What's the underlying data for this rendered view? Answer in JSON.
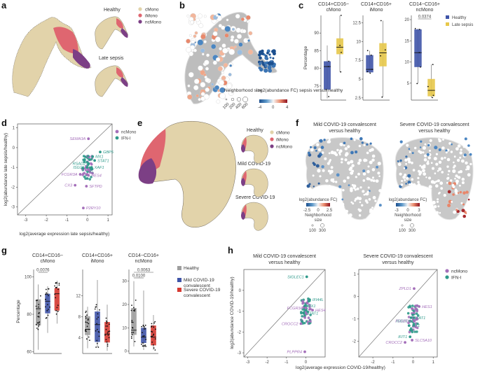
{
  "figure": {
    "panels": {
      "a": {
        "label": "a",
        "subtitles": [
          "Healthy",
          "Late sepsis"
        ],
        "legend": [
          {
            "name": "cMono",
            "color": "#e2d3aa"
          },
          {
            "name": "iMono",
            "color": "#df6670"
          },
          {
            "name": "ncMono",
            "color": "#7c3f85"
          }
        ]
      },
      "b": {
        "label": "b",
        "size_legend_title": "Neighborhood size",
        "size_legend_values": [
          "100",
          "200",
          "400",
          "600"
        ],
        "color_legend_title": "log2(abundance FC) sepsis versus healthy",
        "color_legend_ticks": [
          "-4",
          "0",
          "4"
        ]
      },
      "e": {
        "label": "e",
        "subtitles": [
          "Healthy",
          "Mild COVID-19",
          "Severe COVID-19"
        ],
        "legend": [
          {
            "name": "cMono",
            "color": "#e2d3aa"
          },
          {
            "name": "iMono",
            "color": "#df6670"
          },
          {
            "name": "ncMono",
            "color": "#7c3f85"
          }
        ]
      },
      "f": {
        "label": "f",
        "subplots": [
          {
            "title_l1": "Mild COVID-19 convalescent",
            "title_l2": "versus healthy",
            "fc_title": "log2(abundance FC)",
            "fc_ticks": [
              "-2.5",
              "0",
              "2.5"
            ],
            "size_title_l1": "Neighborhood",
            "size_title_l2": "size",
            "size_values": [
              "100",
              "300"
            ]
          },
          {
            "title_l1": "Severe COVID-19 convalescent",
            "title_l2": "versus healthy",
            "fc_title": "log2(abundance FC)",
            "fc_ticks": [
              "-3",
              "0",
              "3"
            ],
            "size_title_l1": "Neighborhood",
            "size_title_l2": "size",
            "size_values": [
              "100",
              "300"
            ]
          }
        ]
      }
    }
  },
  "chart_data": [
    {
      "panel": "c",
      "type": "box",
      "ylabel": "Percentage",
      "legend": [
        {
          "name": "Healthy",
          "color": "#3f54a8"
        },
        {
          "name": "Late sepsis",
          "color": "#e7c84a"
        }
      ],
      "subplots": [
        {
          "title_l1": "CD14+CD16−",
          "title_l2": "cMono",
          "ylim": [
            71,
            95
          ],
          "yticks": [
            75,
            80,
            85,
            90
          ],
          "boxes": [
            {
              "group": "Healthy",
              "q1": 74,
              "median": 80.5,
              "q3": 82,
              "whisker_low": 71.5,
              "whisker_high": 86.5,
              "points": [
                72,
                74,
                80.5,
                82
              ]
            },
            {
              "group": "Late sepsis",
              "q1": 84,
              "median": 86,
              "q3": 88.5,
              "whisker_low": 79,
              "whisker_high": 95,
              "points": [
                84.5,
                86.5,
                79,
                95
              ]
            }
          ]
        },
        {
          "title_l1": "CD14+CD16+",
          "title_l2": "iMono",
          "ylim": [
            2.2,
            13.5
          ],
          "yticks": [
            2.5,
            5.0,
            7.5,
            10.0,
            12.5
          ],
          "boxes": [
            {
              "group": "Healthy",
              "q1": 5.9,
              "median": 6.3,
              "q3": 8.2,
              "whisker_low": 5.8,
              "whisker_high": 8.8,
              "points": [
                5.8,
                6.0,
                6.3,
                8.2,
                8.8
              ]
            },
            {
              "group": "Late sepsis",
              "q1": 6.7,
              "median": 8.5,
              "q3": 9.8,
              "whisker_low": 2.6,
              "whisker_high": 12.8,
              "points": [
                2.6,
                8.1,
                8.9,
                12.8
              ]
            }
          ]
        },
        {
          "title_l1": "CD14−CD16+",
          "title_l2": "ncMono",
          "ylim": [
            1,
            21
          ],
          "yticks": [
            5,
            10,
            15,
            20
          ],
          "pvalue": "0.0374",
          "boxes": [
            {
              "group": "Healthy",
              "q1": 8.8,
              "median": 12.2,
              "q3": 17.7,
              "whisker_low": 4.9,
              "whisker_high": 17.9,
              "points": [
                4.9,
                8.8,
                12.2,
                17.7,
                18
              ]
            },
            {
              "group": "Late sepsis",
              "q1": 1.9,
              "median": 3.3,
              "q3": 6.0,
              "whisker_low": 1.6,
              "whisker_high": 9.4,
              "points": [
                1.6,
                2.1,
                4.2,
                9.4
              ]
            }
          ]
        }
      ]
    },
    {
      "panel": "d",
      "type": "scatter",
      "xlabel": "log2(average expression late sepsis/healthy)",
      "ylabel": "log2(abundance late sepsis/healthy)",
      "xlim": [
        -3.4,
        1.2
      ],
      "ylim": [
        -3.4,
        1.2
      ],
      "xticks": [
        -3,
        -2,
        -1,
        0,
        1
      ],
      "yticks": [
        -3,
        -2,
        -1,
        0,
        1
      ],
      "legend": [
        {
          "name": "ncMono",
          "color": "#a46fba"
        },
        {
          "name": "IFN-I",
          "color": "#2e998a"
        }
      ],
      "labeled_points": [
        {
          "gene": "SEMA3A",
          "x": 0.05,
          "y": 0.45,
          "group": "ncMono"
        },
        {
          "gene": "GBP5",
          "x": 0.62,
          "y": -0.22,
          "group": "IFN-I"
        },
        {
          "gene": "MX1",
          "x": 0.25,
          "y": -0.45,
          "group": "IFN-I"
        },
        {
          "gene": "STAT1",
          "x": 0.35,
          "y": -0.65,
          "group": "IFN-I"
        },
        {
          "gene": "RSAD2",
          "x": 0.05,
          "y": -0.8,
          "group": "IFN-I"
        },
        {
          "gene": "ISG15",
          "x": -0.02,
          "y": -1.0,
          "group": "IFN-I"
        },
        {
          "gene": "XAF1",
          "x": 0.2,
          "y": -1.0,
          "group": "IFN-I"
        },
        {
          "gene": "FCGR3A",
          "x": -0.35,
          "y": -1.35,
          "group": "ncMono"
        },
        {
          "gene": "HES4",
          "x": 0.05,
          "y": -1.4,
          "group": "ncMono"
        },
        {
          "gene": "CX3",
          "x": -0.6,
          "y": -1.9,
          "group": "ncMono"
        },
        {
          "gene": "SFTPD",
          "x": -0.05,
          "y": -1.95,
          "group": "ncMono"
        },
        {
          "gene": "P2RY10",
          "x": -0.2,
          "y": -3.05,
          "group": "ncMono"
        }
      ]
    },
    {
      "panel": "g",
      "type": "box",
      "ylabel": "Percentage",
      "legend": [
        {
          "name": "Healthy",
          "color": "#9e9e9e"
        },
        {
          "name": "Mild COVID-19 convalescent",
          "color": "#3f54a8"
        },
        {
          "name": "Severe COVID-19 convalescent",
          "color": "#d63a32"
        }
      ],
      "subplots": [
        {
          "title_l1": "CD14+CD16−",
          "title_l2": "cMono",
          "ylim": [
            59,
            104
          ],
          "yticks": [
            60,
            80,
            100
          ],
          "pvalues": [
            "0.0076"
          ],
          "boxes": [
            {
              "group": "Healthy",
              "q1": 74,
              "median": 83,
              "q3": 88,
              "whisker_low": 61,
              "whisker_high": 96
            },
            {
              "group": "Mild COVID-19 convalescent",
              "q1": 80.5,
              "median": 87,
              "q3": 91,
              "whisker_low": 70,
              "whisker_high": 95
            },
            {
              "group": "Severe COVID-19 convalescent",
              "q1": 82,
              "median": 91,
              "q3": 94,
              "whisker_low": 75,
              "whisker_high": 98
            }
          ]
        },
        {
          "title_l1": "CD14+CD16+",
          "title_l2": "iMono",
          "ylim": [
            1,
            17
          ],
          "yticks": [
            4,
            8,
            12
          ],
          "boxes": [
            {
              "group": "Healthy",
              "q1": 4.5,
              "median": 5.6,
              "q3": 8.1,
              "whisker_low": 2.0,
              "whisker_high": 9.9
            },
            {
              "group": "Mild COVID-19 convalescent",
              "q1": 3.2,
              "median": 6.5,
              "q3": 9.0,
              "whisker_low": 2.2,
              "whisker_high": 15.0
            },
            {
              "group": "Severe COVID-19 convalescent",
              "q1": 3.1,
              "median": 4.7,
              "q3": 7.0,
              "whisker_low": 1.5,
              "whisker_high": 10.3
            }
          ]
        },
        {
          "title_l1": "CD14−CD16+",
          "title_l2": "ncMono",
          "ylim": [
            -1,
            35
          ],
          "yticks": [
            0,
            10,
            20,
            30
          ],
          "pvalues": [
            "0.0063",
            "0.0100"
          ],
          "boxes": [
            {
              "group": "Healthy",
              "q1": 7,
              "median": 9,
              "q3": 18.5,
              "whisker_low": 2,
              "whisker_high": 30
            },
            {
              "group": "Mild COVID-19 convalescent",
              "q1": 3.5,
              "median": 6,
              "q3": 10,
              "whisker_low": 0.5,
              "whisker_high": 26
            },
            {
              "group": "Severe COVID-19 convalescent",
              "q1": 2.5,
              "median": 6,
              "q3": 11,
              "whisker_low": 0.5,
              "whisker_high": 15.5
            }
          ]
        }
      ]
    },
    {
      "panel": "h",
      "type": "scatter",
      "xlabel": "log2(average expression COVID-19/healthy)",
      "ylabel": "log2(abundance COVID-19/healthy)",
      "legend": [
        {
          "name": "ncMono",
          "color": "#a46fba"
        },
        {
          "name": "IFN-I",
          "color": "#2e998a"
        }
      ],
      "subplots": [
        {
          "title_l1": "Mild COVID-19 convalescent",
          "title_l2": "versus healthy",
          "xlim": [
            -3.2,
            1.0
          ],
          "ylim": [
            -3.2,
            1.0
          ],
          "xticks": [
            -3,
            -2,
            -1,
            0
          ],
          "yticks": [
            -3,
            -2,
            -1,
            0
          ],
          "labeled_points": [
            {
              "gene": "SIGLEC1",
              "x": 0.05,
              "y": 0.65,
              "group": "IFN-I"
            },
            {
              "gene": "IFI44L",
              "x": 0.2,
              "y": -0.45,
              "group": "IFN-I"
            },
            {
              "gene": "MX1",
              "x": -0.05,
              "y": -0.75,
              "group": "IFN-I"
            },
            {
              "gene": "FCGR3A",
              "x": 0.0,
              "y": -0.85,
              "group": "ncMono"
            },
            {
              "gene": "STAT1",
              "x": -0.1,
              "y": -1.1,
              "group": "IFN-I"
            },
            {
              "gene": "HES4",
              "x": 0.35,
              "y": -0.95,
              "group": "ncMono"
            },
            {
              "gene": "CROCC2",
              "x": -0.25,
              "y": -1.6,
              "group": "ncMono"
            },
            {
              "gene": "PLPPR4",
              "x": -0.05,
              "y": -2.95,
              "group": "ncMono"
            }
          ]
        },
        {
          "title_l1": "Severe COVID-19 convalescent",
          "title_l2": "versus healthy",
          "xlim": [
            -2.7,
            1.2
          ],
          "ylim": [
            -2.7,
            1.2
          ],
          "xticks": [
            -2,
            -1,
            0,
            1
          ],
          "yticks": [
            -2,
            -1,
            0,
            1
          ],
          "labeled_points": [
            {
              "gene": "ZPLD1",
              "x": 0.05,
              "y": 0.35,
              "group": "ncMono"
            },
            {
              "gene": "HES1",
              "x": 0.3,
              "y": -0.45,
              "group": "ncMono"
            },
            {
              "gene": "STAT1",
              "x": -0.1,
              "y": -0.95,
              "group": "IFN-I"
            },
            {
              "gene": "ISG15",
              "x": -0.15,
              "y": -1.1,
              "group": "IFN-I"
            },
            {
              "gene": "MX1",
              "x": -0.2,
              "y": -1.3,
              "group": "IFN-I"
            },
            {
              "gene": "FCGR3A",
              "x": 0.05,
              "y": -1.1,
              "group": "ncMono"
            },
            {
              "gene": "IFIT1",
              "x": -0.15,
              "y": -1.8,
              "group": "IFN-I"
            },
            {
              "gene": "SLC5A10",
              "x": -0.05,
              "y": -1.95,
              "group": "ncMono"
            },
            {
              "gene": "CROCC2",
              "x": -0.4,
              "y": -2.05,
              "group": "ncMono"
            }
          ]
        }
      ]
    }
  ]
}
